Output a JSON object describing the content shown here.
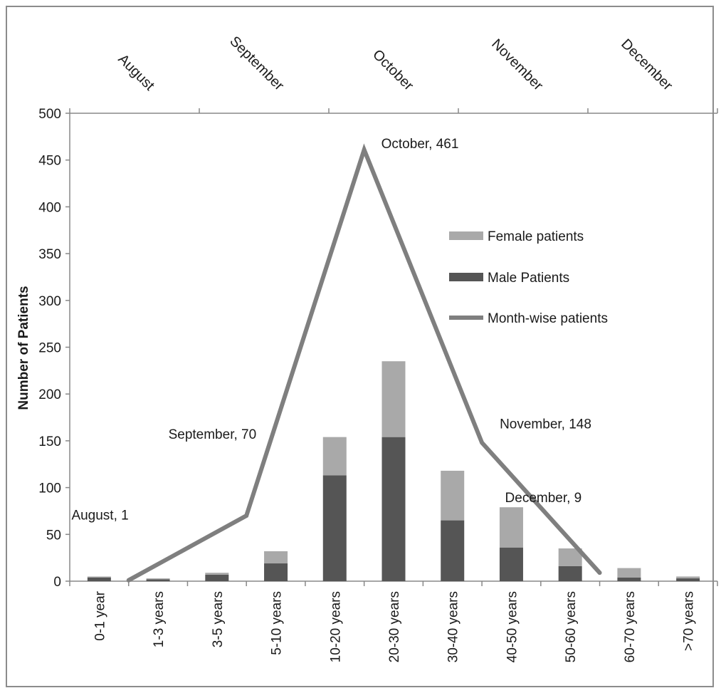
{
  "chart_data": {
    "type": "bar",
    "ylabel": "Number of Patients",
    "ylim": [
      0,
      500
    ],
    "yticks": [
      "0",
      "50",
      "100",
      "150",
      "200",
      "250",
      "300",
      "350",
      "400",
      "450",
      "500"
    ],
    "categories": [
      "0-1 year",
      "1-3 years",
      "3-5 years",
      "5-10 years",
      "10-20 years",
      "20-30 years",
      "30-40 years",
      "40-50 years",
      "50-60 years",
      "60-70 years",
      ">70 years"
    ],
    "series": [
      {
        "name": "Male Patients",
        "color": "#555555",
        "values": [
          4,
          2,
          7,
          19,
          113,
          154,
          65,
          36,
          16,
          4,
          3
        ]
      },
      {
        "name": "Female patients",
        "color": "#a9a9a9",
        "values": [
          1,
          1,
          2,
          13,
          41,
          81,
          53,
          43,
          19,
          10,
          2
        ]
      }
    ],
    "line": {
      "name": "Month-wise  patients",
      "color": "#7f7f7f",
      "months": [
        "August",
        "September",
        "October",
        "November",
        "December"
      ],
      "values": [
        1,
        70,
        461,
        148,
        9
      ],
      "point_labels": [
        "August, 1",
        "September, 70",
        "October, 461",
        "November, 148",
        "December, 9"
      ]
    },
    "legend": {
      "position": "right",
      "items": [
        "Female patients",
        "Male Patients",
        "Month-wise  patients"
      ]
    },
    "grid": false
  }
}
